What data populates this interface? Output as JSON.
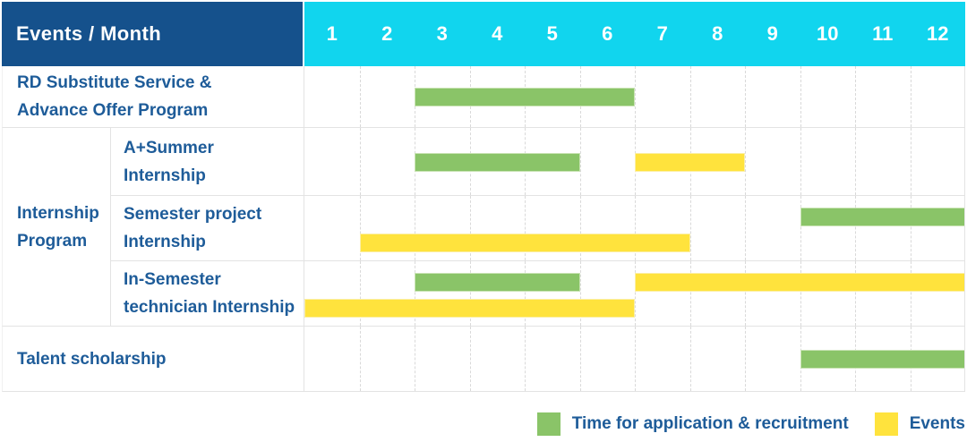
{
  "header": {
    "title": "Events / Month",
    "months": [
      "1",
      "2",
      "3",
      "4",
      "5",
      "6",
      "7",
      "8",
      "9",
      "10",
      "11",
      "12"
    ]
  },
  "colors": {
    "header_bg": "#15518C",
    "months_bg": "#11D5EE",
    "label_text": "#1E5C99",
    "application": "#8AC468",
    "event": "#FFE33D"
  },
  "legend": [
    {
      "type": "application",
      "label": "Time for application & recruitment"
    },
    {
      "type": "event",
      "label": "Events"
    }
  ],
  "chart_data": {
    "type": "bar",
    "title": "Events / Month",
    "xlabel": "Month",
    "x_ticks": [
      1,
      2,
      3,
      4,
      5,
      6,
      7,
      8,
      9,
      10,
      11,
      12
    ],
    "x_range": [
      1,
      13
    ],
    "grid": "dashed-vertical",
    "legend_position": "bottom-right",
    "series_types": {
      "application": "Time for application & recruitment",
      "event": "Events"
    },
    "rows": [
      {
        "group": null,
        "label": "RD Substitute Service & Advance Offer Program",
        "label_lines": [
          "RD Substitute Service &",
          "Advance Offer Program"
        ],
        "lanes": 1,
        "bars": [
          {
            "type": "application",
            "start_month": 3,
            "end_month": 6,
            "lane": 0
          }
        ]
      },
      {
        "group": "Internship Program",
        "group_label_lines": [
          "Internship",
          "Program"
        ],
        "label": "A+Summer Internship",
        "label_lines": [
          "A+Summer",
          "Internship"
        ],
        "lanes": 1,
        "bars": [
          {
            "type": "application",
            "start_month": 3,
            "end_month": 5,
            "lane": 0
          },
          {
            "type": "event",
            "start_month": 7,
            "end_month": 8,
            "lane": 0
          }
        ]
      },
      {
        "group": "Internship Program",
        "label": "Semester project Internship",
        "label_lines": [
          "Semester project",
          "Internship"
        ],
        "lanes": 2,
        "bars": [
          {
            "type": "application",
            "start_month": 10,
            "end_month": 12,
            "lane": 0
          },
          {
            "type": "event",
            "start_month": 2,
            "end_month": 7,
            "lane": 1
          }
        ]
      },
      {
        "group": "Internship Program",
        "label": "In-Semester technician Internship",
        "label_lines": [
          "In-Semester",
          "technician Internship"
        ],
        "lanes": 2,
        "bars": [
          {
            "type": "application",
            "start_month": 3,
            "end_month": 5,
            "lane": 0
          },
          {
            "type": "event",
            "start_month": 7,
            "end_month": 12,
            "lane": 0
          },
          {
            "type": "event",
            "start_month": 1,
            "end_month": 6,
            "lane": 1
          }
        ]
      },
      {
        "group": null,
        "label": "Talent scholarship",
        "label_lines": [
          "Talent scholarship"
        ],
        "lanes": 1,
        "bars": [
          {
            "type": "application",
            "start_month": 10,
            "end_month": 12,
            "lane": 0
          }
        ]
      }
    ]
  }
}
